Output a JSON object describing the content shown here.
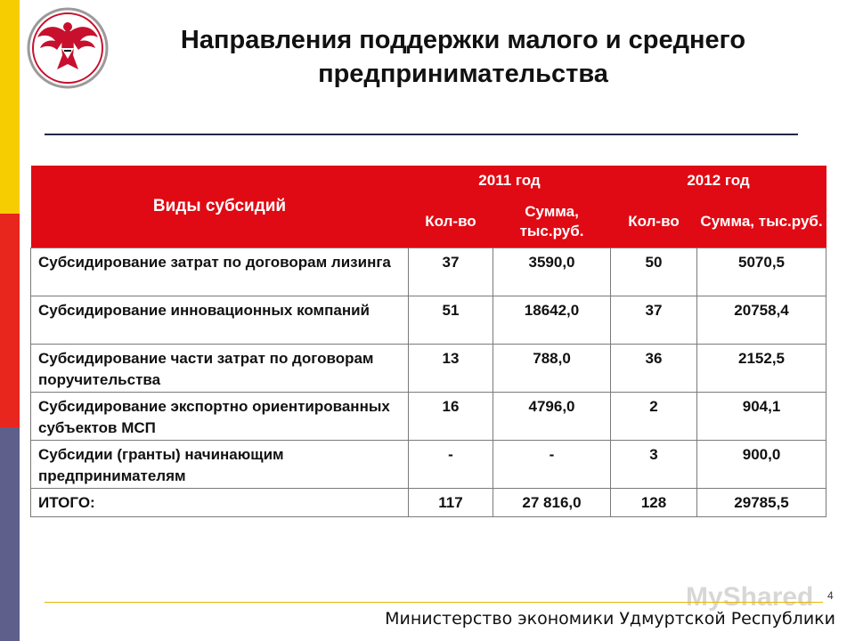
{
  "title": "Направления поддержки малого и среднего предпринимательства",
  "table": {
    "header": {
      "kind": "Виды субсидий",
      "year1": "2011 год",
      "year2": "2012 год",
      "count": "Кол-во",
      "sum": "Сумма, тыс.руб."
    },
    "rows": [
      {
        "name": "Субсидирование затрат по договорам лизинга",
        "c2011": "37",
        "s2011": "3590,0",
        "c2012": "50",
        "s2012": "5070,5"
      },
      {
        "name": "Субсидирование инновационных компаний",
        "c2011": "51",
        "s2011": "18642,0",
        "c2012": "37",
        "s2012": "20758,4"
      },
      {
        "name": "Субсидирование части затрат по договорам поручительства",
        "c2011": "13",
        "s2011": "788,0",
        "c2012": "36",
        "s2012": "2152,5"
      },
      {
        "name": "Субсидирование экспортно ориентированных субъектов МСП",
        "c2011": "16",
        "s2011": "4796,0",
        "c2012": "2",
        "s2012": "904,1"
      },
      {
        "name": "Субсидии (гранты) начинающим предпринимателям",
        "c2011": "-",
        "s2011": "-",
        "c2012": "3",
        "s2012": "900,0"
      }
    ],
    "total": {
      "name": "ИТОГО:",
      "c2011": "117",
      "s2011": "27 816,0",
      "c2012": "128",
      "s2012": "29785,5"
    }
  },
  "footer": {
    "page_number": "4",
    "ministry": "Министерство экономики Удмуртской Республики",
    "watermark": "MyShared"
  },
  "colors": {
    "header_red": "#e00a14",
    "stripe_yellow": "#f5cd00",
    "stripe_red": "#e8261d",
    "stripe_purple": "#5f5f8c"
  },
  "icons": {
    "emblem": "udmurtia-coat-of-arms"
  }
}
